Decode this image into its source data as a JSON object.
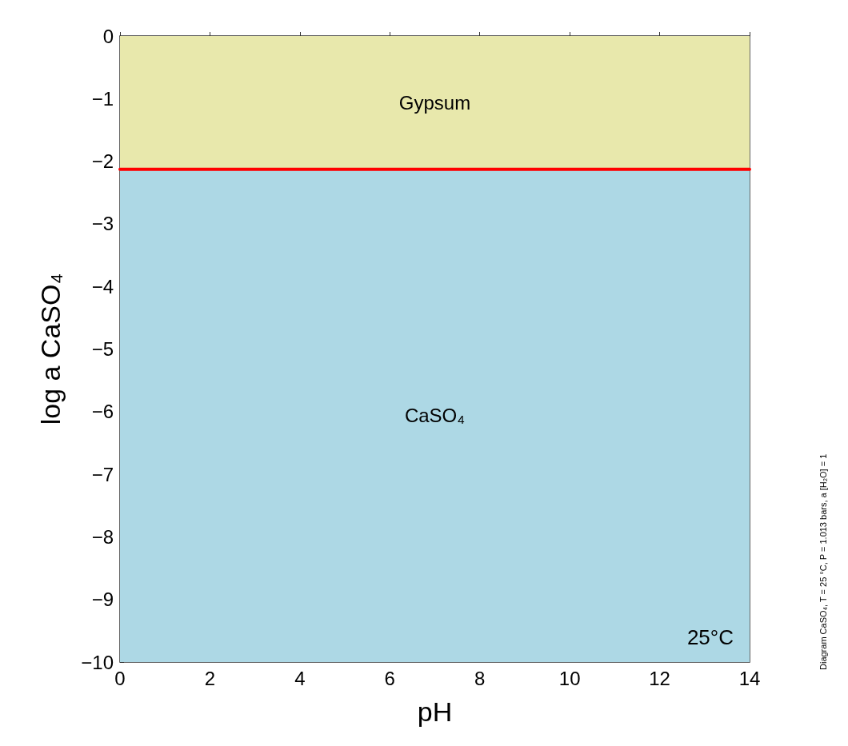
{
  "chart_data": {
    "type": "line",
    "xlabel": "pH",
    "ylabel": "log a CaSO₄",
    "x": [
      0,
      14
    ],
    "series": [
      {
        "color": "#ff0000",
        "values": [
          -2.13,
          -2.13
        ]
      }
    ],
    "xlim": [
      0,
      14
    ],
    "xticks": [
      0,
      2,
      4,
      6,
      8,
      10,
      12,
      14
    ],
    "ylim": [
      -10,
      0
    ],
    "yticks": [
      -10,
      -9,
      -8,
      -7,
      -6,
      -5,
      -4,
      -3,
      -2,
      -1,
      0
    ],
    "bands": [
      {
        "axis": "y",
        "from": -2.13,
        "to": 0,
        "label": "Gypsum",
        "color": "#e8e8ac"
      },
      {
        "axis": "y",
        "from": -10,
        "to": -2.13,
        "label": "CaSO₄",
        "color": "#add8e5"
      }
    ],
    "annotations": [
      "25°C",
      "Diagram CaSO₄, T = 25 °C, P = 1.013 bars, a [H₂O] = 1"
    ],
    "grid": false,
    "marker": "none",
    "line_style": "solid"
  }
}
